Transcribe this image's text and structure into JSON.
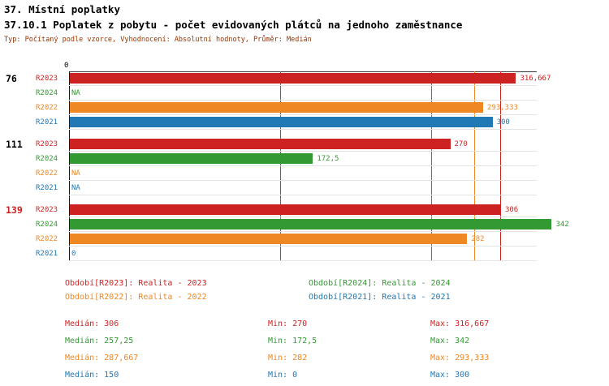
{
  "title_line1": "37. Místní poplatky",
  "title_line2": "37.10.1 Poplatek z pobytu - počet evidovaných plátců na jednoho zaměstnance",
  "meta_line": "Typ: Počítaný podle vzorce, Vyhodnocení: Absolutní hodnoty, Průměr: Medián",
  "colors": {
    "R2023": "#cc2222",
    "R2024": "#339933",
    "R2022": "#ef8722",
    "R2021": "#2078b4",
    "axis": "#3a3a3a",
    "grid": "#e3e3e3",
    "meta_text": "#993300",
    "title_text": "#000000"
  },
  "chart_data": {
    "type": "bar",
    "orientation": "horizontal",
    "axis_zero_label": "0",
    "xlim": [
      0,
      355
    ],
    "grid": "row-separators",
    "legend_position": "bottom",
    "series_order": [
      "R2023",
      "R2024",
      "R2022",
      "R2021"
    ],
    "groups": [
      {
        "label": "76",
        "label_color": "#000000",
        "bars": [
          {
            "series": "R2023",
            "value": 316.667,
            "display": "316,667"
          },
          {
            "series": "R2024",
            "value": null,
            "display": "NA"
          },
          {
            "series": "R2022",
            "value": 293.333,
            "display": "293,333"
          },
          {
            "series": "R2021",
            "value": 300,
            "display": "300"
          }
        ]
      },
      {
        "label": "111",
        "label_color": "#000000",
        "bars": [
          {
            "series": "R2023",
            "value": 270,
            "display": "270"
          },
          {
            "series": "R2024",
            "value": 172.5,
            "display": "172,5"
          },
          {
            "series": "R2022",
            "value": null,
            "display": "NA"
          },
          {
            "series": "R2021",
            "value": null,
            "display": "NA"
          }
        ]
      },
      {
        "label": "139",
        "label_color": "#cc2222",
        "bars": [
          {
            "series": "R2023",
            "value": 306,
            "display": "306"
          },
          {
            "series": "R2024",
            "value": 342,
            "display": "342"
          },
          {
            "series": "R2022",
            "value": 282,
            "display": "282"
          },
          {
            "series": "R2021",
            "value": 0,
            "display": "0"
          }
        ]
      }
    ],
    "median_lines": [
      {
        "series": "R2023",
        "value": 306
      },
      {
        "series": "R2024",
        "value": 257.25
      },
      {
        "series": "R2022",
        "value": 287.667
      },
      {
        "series": "R2021",
        "value": 150
      }
    ],
    "legend": [
      {
        "series": "R2023",
        "label": "Období[R2023]: Realita - 2023"
      },
      {
        "series": "R2024",
        "label": "Období[R2024]: Realita - 2024"
      },
      {
        "series": "R2022",
        "label": "Období[R2022]: Realita - 2022"
      },
      {
        "series": "R2021",
        "label": "Období[R2021]: Realita - 2021"
      }
    ],
    "stats": [
      {
        "series": "R2023",
        "median": "Medián: 306",
        "min": "Min: 270",
        "max": "Max: 316,667"
      },
      {
        "series": "R2024",
        "median": "Medián: 257,25",
        "min": "Min: 172,5",
        "max": "Max: 342"
      },
      {
        "series": "R2022",
        "median": "Medián: 287,667",
        "min": "Min: 282",
        "max": "Max: 293,333"
      },
      {
        "series": "R2021",
        "median": "Medián: 150",
        "min": "Min: 0",
        "max": "Max: 300"
      }
    ]
  }
}
